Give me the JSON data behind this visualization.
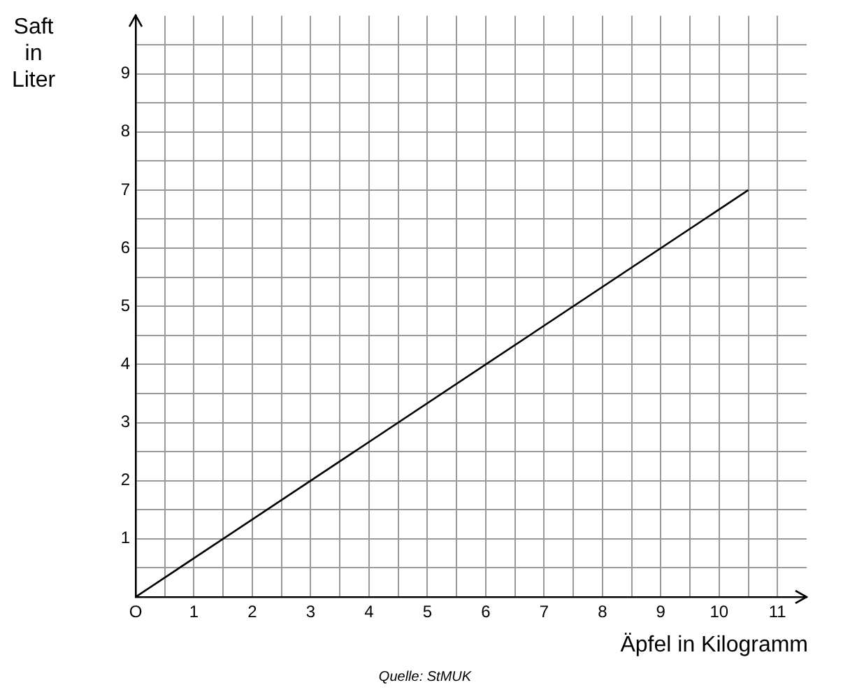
{
  "chart_data": {
    "type": "line",
    "xlabel": "Äpfel in Kilogramm",
    "ylabel": "Saft\nin\nLiter",
    "annotations": [
      "Quelle: StMUK"
    ],
    "series": [
      {
        "color": "#000000",
        "x": [
          0,
          10.5
        ],
        "values": [
          0,
          7
        ]
      }
    ],
    "xlim": [
      0,
      11.5
    ],
    "ylim": [
      0,
      10
    ],
    "xticks": [
      {
        "value": 0,
        "label": "O"
      },
      {
        "value": 0.5,
        "label": null
      },
      1,
      {
        "value": 1.5,
        "label": null
      },
      2,
      {
        "value": 2.5,
        "label": null
      },
      3,
      {
        "value": 3.5,
        "label": null
      },
      4,
      {
        "value": 4.5,
        "label": null
      },
      5,
      {
        "value": 5.5,
        "label": null
      },
      6,
      {
        "value": 6.5,
        "label": null
      },
      7,
      {
        "value": 7.5,
        "label": null
      },
      8,
      {
        "value": 8.5,
        "label": null
      },
      9,
      {
        "value": 9.5,
        "label": null
      },
      10,
      {
        "value": 10.5,
        "label": null
      },
      11
    ],
    "yticks": [
      {
        "value": 0,
        "label": null
      },
      {
        "value": 0.5,
        "label": null
      },
      1,
      {
        "value": 1.5,
        "label": null
      },
      2,
      {
        "value": 2.5,
        "label": null
      },
      3,
      {
        "value": 3.5,
        "label": null
      },
      4,
      {
        "value": 4.5,
        "label": null
      },
      5,
      {
        "value": 5.5,
        "label": null
      },
      6,
      {
        "value": 6.5,
        "label": null
      },
      7,
      {
        "value": 7.5,
        "label": null
      },
      8,
      {
        "value": 8.5,
        "label": null
      },
      9,
      {
        "value": 9.5,
        "label": null
      }
    ],
    "grid": true,
    "legend": false,
    "marker": "none",
    "line_style": "solid"
  }
}
